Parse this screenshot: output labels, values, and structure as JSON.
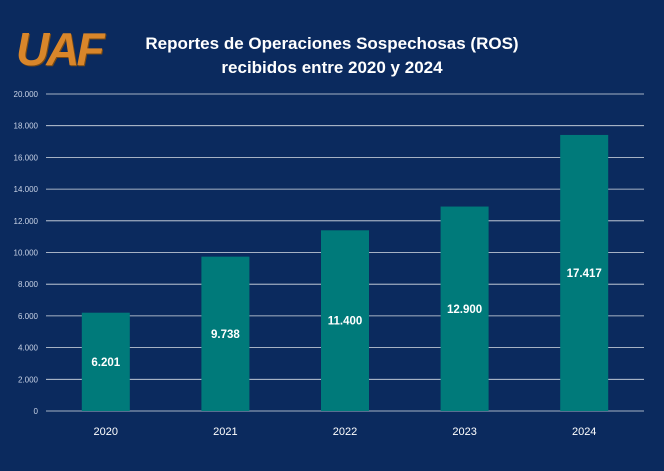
{
  "logo": {
    "text": "UAF",
    "color": "#d9862a"
  },
  "chart_data": {
    "type": "bar",
    "title_line1": "Reportes de Operaciones Sospechosas (ROS)",
    "title_line2": "recibidos entre 2020 y 2024",
    "xlabel": "",
    "ylabel": "",
    "categories": [
      "2020",
      "2021",
      "2022",
      "2023",
      "2024"
    ],
    "values": [
      6201,
      9738,
      11400,
      12900,
      17417
    ],
    "value_labels": [
      "6.201",
      "9.738",
      "11.400",
      "12.900",
      "17.417"
    ],
    "ylim": [
      0,
      20000
    ],
    "yticks": [
      0,
      2000,
      4000,
      6000,
      8000,
      10000,
      12000,
      14000,
      16000,
      18000,
      20000
    ],
    "ytick_labels": [
      "0",
      "2.000",
      "4.000",
      "6.000",
      "8.000",
      "10.000",
      "12.000",
      "14.000",
      "16.000",
      "18.000",
      "20.000"
    ],
    "grid": true,
    "legend": "none",
    "colors": {
      "background": "#0b2a5e",
      "bar": "#007a7a",
      "grid": "#ffffff"
    }
  }
}
